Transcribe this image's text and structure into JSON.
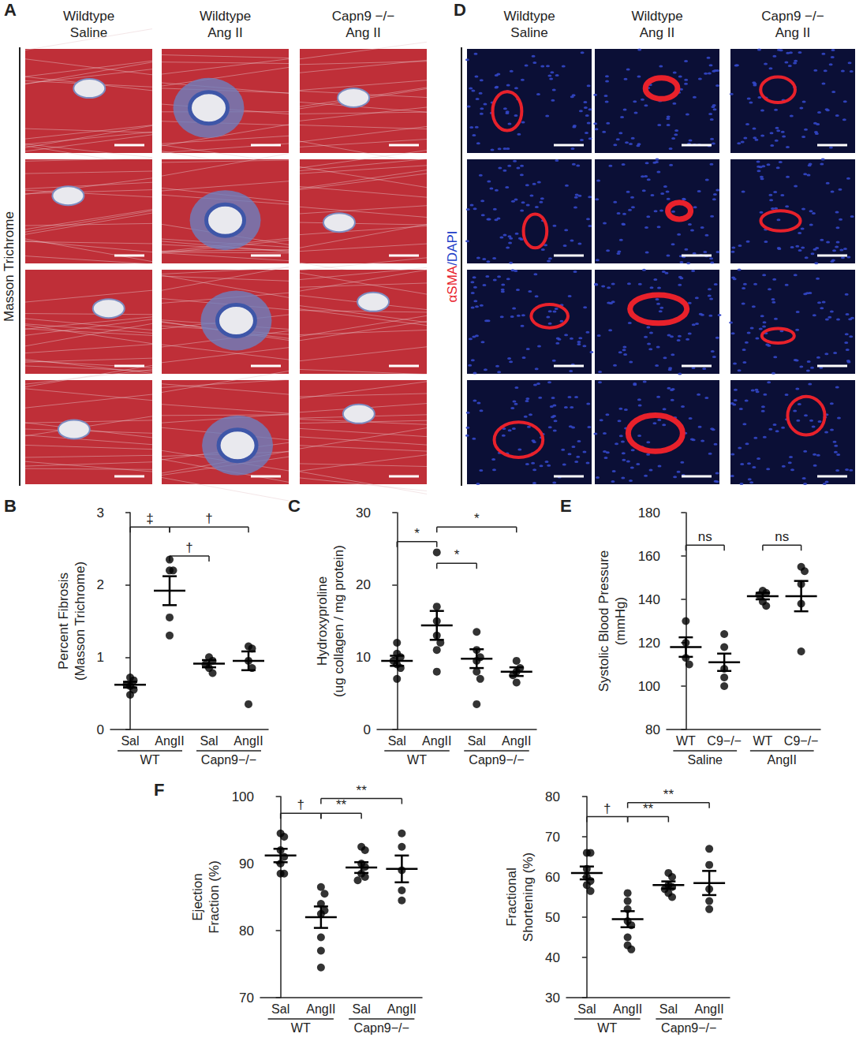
{
  "image_panels": [
    {
      "panel": "A",
      "columns": [
        [
          "Wildtype",
          "Saline"
        ],
        [
          "Wildtype",
          "Ang II"
        ],
        [
          "Capn9 −/−",
          "Ang II"
        ]
      ],
      "row_label": [
        {
          "text": "Masson Trichrome",
          "color": "#222222"
        }
      ]
    },
    {
      "panel": "D",
      "columns": [
        [
          "Wildtype",
          "Saline"
        ],
        [
          "Wildtype",
          "Ang II"
        ],
        [
          "Capn9 −/−",
          "Ang II"
        ]
      ],
      "row_label": [
        {
          "text": "αSMA",
          "color": "#e8212b"
        },
        {
          "text": "/DAPI",
          "color": "#2340c8"
        }
      ]
    }
  ],
  "chart_data": [
    {
      "panel": "B",
      "type": "scatter",
      "marker": "circle",
      "color": "#000000",
      "grid": false,
      "ylabel": "Percent Fibrosis\n(Masson Trichrome)",
      "categories": [
        "Sal",
        "AngII",
        "Sal",
        "AngII"
      ],
      "groups": [
        "WT",
        "WT",
        "Capn9−/−",
        "Capn9−/−"
      ],
      "ylim": [
        0,
        3
      ],
      "yticks": [
        0,
        1,
        2,
        3
      ],
      "values": [
        [
          0.72,
          0.68,
          0.62,
          0.6,
          0.55,
          0.48
        ],
        [
          2.35,
          2.2,
          2.2,
          1.55,
          1.3
        ],
        [
          1.0,
          0.95,
          0.9,
          0.85,
          0.78
        ],
        [
          1.15,
          1.12,
          0.95,
          0.85,
          0.35
        ]
      ],
      "mean": [
        0.62,
        1.92,
        0.91,
        0.95
      ],
      "sem": [
        0.04,
        0.2,
        0.05,
        0.13
      ],
      "comparisons": [
        {
          "from": 0,
          "to": 1,
          "y": 2.8,
          "label": "‡"
        },
        {
          "from": 1,
          "to": 2,
          "y": 2.4,
          "label": "†"
        },
        {
          "from": 1,
          "to": 3,
          "y": 2.8,
          "label": "†"
        }
      ]
    },
    {
      "panel": "C",
      "type": "scatter",
      "marker": "circle",
      "color": "#000000",
      "grid": false,
      "ylabel": "Hydroxyproline\n(ug collagen / mg protein)",
      "categories": [
        "Sal",
        "AngII",
        "Sal",
        "AngII"
      ],
      "groups": [
        "WT",
        "WT",
        "Capn9−/−",
        "Capn9−/−"
      ],
      "ylim": [
        0,
        30
      ],
      "yticks": [
        0,
        10,
        20,
        30
      ],
      "values": [
        [
          12,
          10.5,
          10,
          9.5,
          9,
          8.5,
          7
        ],
        [
          24.5,
          17,
          15,
          13,
          12,
          11,
          8
        ],
        [
          13.5,
          11,
          10,
          9.5,
          8,
          7,
          3.5
        ],
        [
          9.5,
          8.5,
          8,
          7.5,
          6.5
        ]
      ],
      "mean": [
        9.5,
        14.4,
        9.8,
        8
      ],
      "sem": [
        0.7,
        2,
        1.3,
        0.6
      ],
      "comparisons": [
        {
          "from": 0,
          "to": 1,
          "y": 26,
          "label": "*"
        },
        {
          "from": 1,
          "to": 2,
          "y": 23,
          "label": "*"
        },
        {
          "from": 1,
          "to": 3,
          "y": 28,
          "label": "*"
        }
      ]
    },
    {
      "panel": "E",
      "type": "scatter",
      "marker": "circle",
      "color": "#000000",
      "grid": false,
      "ylabel": "Systolic Blood Pressure\n(mmHg)",
      "categories": [
        "WT",
        "C9−/−",
        "WT",
        "C9−/−"
      ],
      "groups": [
        "Saline",
        "Saline",
        "AngII",
        "AngII"
      ],
      "ylim": [
        80,
        180
      ],
      "yticks": [
        80,
        100,
        120,
        140,
        160,
        180
      ],
      "values": [
        [
          130,
          120,
          113,
          110
        ],
        [
          124,
          118,
          108,
          104,
          100
        ],
        [
          144,
          143,
          142,
          139,
          137
        ],
        [
          155,
          153,
          147,
          138,
          116
        ]
      ],
      "mean": [
        118,
        111,
        141.5,
        141.5
      ],
      "sem": [
        4.5,
        4,
        1.5,
        7
      ],
      "comparisons": [
        {
          "from": 0,
          "to": 1,
          "y": 165,
          "label": "ns"
        },
        {
          "from": 2,
          "to": 3,
          "y": 165,
          "label": "ns"
        }
      ]
    },
    {
      "panel": "F",
      "type": "scatter",
      "marker": "circle",
      "color": "#000000",
      "grid": false,
      "ylabel": "Ejection\nFraction (%)",
      "categories": [
        "Sal",
        "AngII",
        "Sal",
        "AngII"
      ],
      "groups": [
        "WT",
        "WT",
        "Capn9−/−",
        "Capn9−/−"
      ],
      "ylim": [
        70,
        100
      ],
      "yticks": [
        70,
        80,
        90,
        100
      ],
      "values": [
        [
          94.5,
          94,
          92,
          91,
          90,
          88.5,
          88.5
        ],
        [
          86.5,
          85.5,
          84,
          83,
          82.5,
          79,
          77,
          74.5
        ],
        [
          92.5,
          92,
          90,
          89.5,
          88.5,
          88,
          87.5
        ],
        [
          94.5,
          92.5,
          89,
          86,
          84.5
        ]
      ],
      "mean": [
        91.2,
        82,
        89.4,
        89.2
      ],
      "sem": [
        1,
        1.6,
        0.8,
        2
      ],
      "comparisons": [
        {
          "from": 0,
          "to": 1,
          "y": 97.5,
          "label": "†"
        },
        {
          "from": 1,
          "to": 2,
          "y": 97.5,
          "label": "**"
        },
        {
          "from": 1,
          "to": 3,
          "y": 99.7,
          "label": "**"
        }
      ]
    },
    {
      "type": "scatter",
      "marker": "circle",
      "color": "#000000",
      "grid": false,
      "ylabel": "Fractional\nShortening (%)",
      "categories": [
        "Sal",
        "AngII",
        "Sal",
        "AngII"
      ],
      "groups": [
        "WT",
        "WT",
        "Capn9−/−",
        "Capn9−/−"
      ],
      "ylim": [
        30,
        80
      ],
      "yticks": [
        30,
        40,
        50,
        60,
        70,
        80
      ],
      "values": [
        [
          66,
          66,
          62,
          60,
          59,
          58,
          56.5
        ],
        [
          56,
          54,
          52,
          49,
          48,
          45,
          43,
          42
        ],
        [
          61,
          60,
          58,
          57.5,
          57,
          56,
          55
        ],
        [
          67,
          63,
          57,
          54,
          52
        ]
      ],
      "mean": [
        61,
        49.5,
        58,
        58.5
      ],
      "sem": [
        1.6,
        2,
        0.9,
        3
      ],
      "comparisons": [
        {
          "from": 0,
          "to": 1,
          "y": 75,
          "label": "†"
        },
        {
          "from": 1,
          "to": 2,
          "y": 75,
          "label": "**"
        },
        {
          "from": 1,
          "to": 3,
          "y": 78.5,
          "label": "**"
        }
      ]
    }
  ]
}
